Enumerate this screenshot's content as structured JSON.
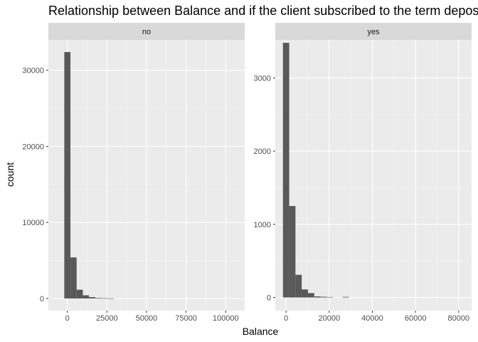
{
  "chart_data": {
    "type": "bar",
    "title": "Relationship between Balance and if the client subscribed to the term deposit",
    "xlabel": "Balance",
    "ylabel": "count",
    "grid": true,
    "facets": [
      {
        "label": "no",
        "xlim": [
          -12000,
          112000
        ],
        "ylim": [
          -1600,
          34000
        ],
        "x_ticks": [
          0,
          25000,
          50000,
          75000,
          100000
        ],
        "x_tick_labels": [
          "0",
          "25000",
          "50000",
          "75000",
          "100000"
        ],
        "y_ticks": [
          0,
          10000,
          20000,
          30000
        ],
        "y_tick_labels": [
          "0",
          "10000",
          "20000",
          "30000"
        ],
        "bin_width": 3900,
        "bins": [
          {
            "x": 0,
            "count": 32400
          },
          {
            "x": 3900,
            "count": 5400
          },
          {
            "x": 7800,
            "count": 1150
          },
          {
            "x": 11700,
            "count": 420
          },
          {
            "x": 15600,
            "count": 180
          },
          {
            "x": 19500,
            "count": 70
          },
          {
            "x": 23400,
            "count": 30
          },
          {
            "x": 27300,
            "count": 10
          }
        ]
      },
      {
        "label": "yes",
        "xlim": [
          -5000,
          86000
        ],
        "ylim": [
          -180,
          3520
        ],
        "x_ticks": [
          0,
          20000,
          40000,
          60000,
          80000
        ],
        "x_tick_labels": [
          "0",
          "20000",
          "40000",
          "60000",
          "80000"
        ],
        "y_ticks": [
          0,
          1000,
          2000,
          3000
        ],
        "y_tick_labels": [
          "0",
          "1000",
          "2000",
          "3000"
        ],
        "bin_width": 2900,
        "bins": [
          {
            "x": 0,
            "count": 3480
          },
          {
            "x": 2900,
            "count": 1250
          },
          {
            "x": 5800,
            "count": 310
          },
          {
            "x": 8700,
            "count": 110
          },
          {
            "x": 11600,
            "count": 60
          },
          {
            "x": 14500,
            "count": 15
          },
          {
            "x": 17400,
            "count": 10
          },
          {
            "x": 20300,
            "count": 6
          },
          {
            "x": 27600,
            "count": 8
          }
        ]
      }
    ]
  }
}
